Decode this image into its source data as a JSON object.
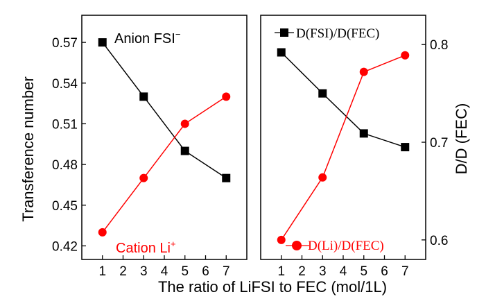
{
  "colors": {
    "black": "#000000",
    "red": "#ff0000"
  },
  "shared_xlabel": "The ratio of LiFSI to FEC (mol/1L)",
  "chart_data": [
    {
      "type": "line",
      "ylabel": "Transference number",
      "xlim": [
        0,
        8
      ],
      "ylim": [
        0.41,
        0.59
      ],
      "x_ticks": [
        1,
        2,
        3,
        4,
        5,
        6,
        7
      ],
      "y_ticks": [
        0.42,
        0.45,
        0.48,
        0.51,
        0.54,
        0.57
      ],
      "y_tick_labels": [
        "0.42",
        "0.45",
        "0.48",
        "0.51",
        "0.54",
        "0.57"
      ],
      "annotations": [
        {
          "text": "Anion FSI",
          "sup": "−",
          "color": "#000000"
        },
        {
          "text": "Cation Li",
          "sup": "+",
          "color": "#ff0000"
        }
      ],
      "series": [
        {
          "marker": "square",
          "color": "#000000",
          "x": [
            1,
            3,
            5,
            7
          ],
          "values": [
            0.57,
            0.53,
            0.49,
            0.47
          ]
        },
        {
          "marker": "circle",
          "color": "#ff0000",
          "x": [
            1,
            3,
            5,
            7
          ],
          "values": [
            0.43,
            0.47,
            0.51,
            0.53
          ]
        }
      ]
    },
    {
      "type": "line",
      "ylabel": "D/D (FEC)",
      "y_axis_side": "right",
      "xlim": [
        0,
        8
      ],
      "ylim": [
        0.58,
        0.83
      ],
      "x_ticks": [
        1,
        2,
        3,
        4,
        5,
        6,
        7
      ],
      "y_ticks": [
        0.6,
        0.7,
        0.8
      ],
      "y_tick_labels": [
        "0.6",
        "0.7",
        "0.8"
      ],
      "series": [
        {
          "name": "D(FSI)/D(FEC)",
          "marker": "square",
          "color": "#000000",
          "x": [
            1,
            3,
            5,
            7
          ],
          "values": [
            0.792,
            0.75,
            0.709,
            0.695
          ],
          "legend_position": "top-left"
        },
        {
          "name": "D(Li)/D(FEC)",
          "marker": "circle",
          "color": "#ff0000",
          "x": [
            1,
            3,
            5,
            7
          ],
          "values": [
            0.6,
            0.664,
            0.772,
            0.789
          ],
          "legend_position": "bottom-left"
        }
      ]
    }
  ]
}
